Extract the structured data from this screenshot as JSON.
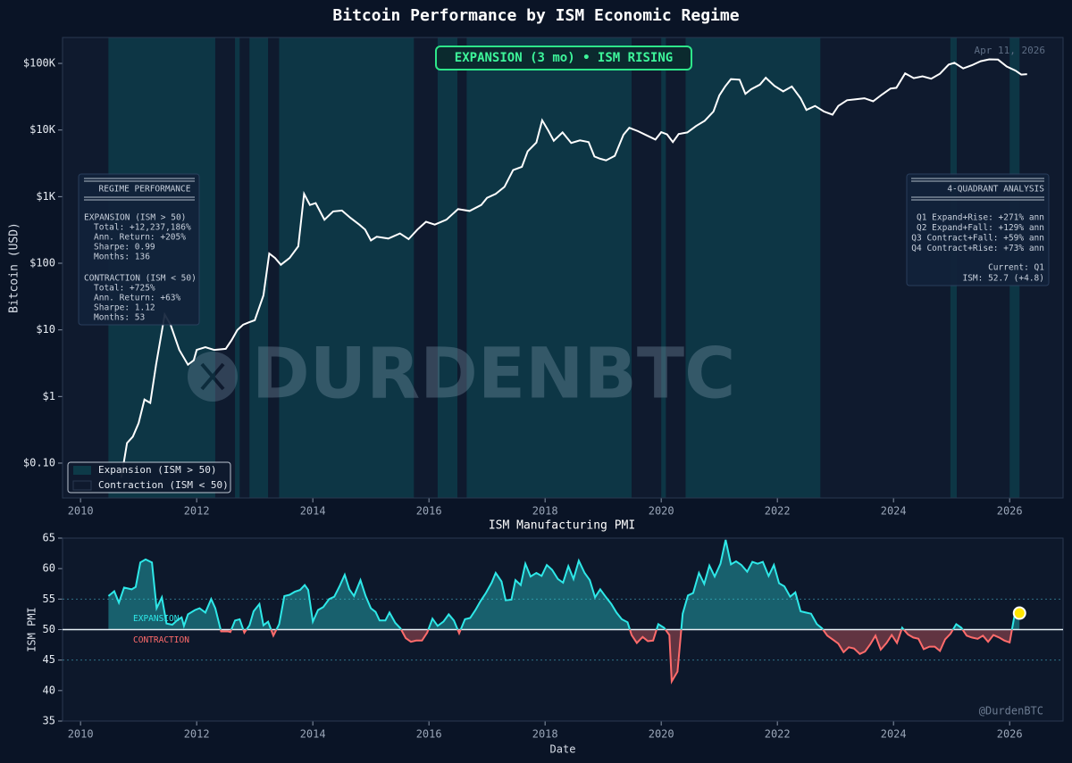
{
  "title": "Bitcoin Performance by ISM Economic Regime",
  "chart_data": [
    {
      "type": "line",
      "ylabel": "Bitcoin (USD)",
      "log_scale": true,
      "xlim": [
        2009.69,
        2026.92
      ],
      "xticks": [
        2010,
        2012,
        2014,
        2016,
        2018,
        2020,
        2022,
        2024,
        2026
      ],
      "ylim": [
        0.03,
        245000
      ],
      "yticks": [
        {
          "value": 0.1,
          "label": "$0.10"
        },
        {
          "value": 1,
          "label": "$1"
        },
        {
          "value": 10,
          "label": "$10"
        },
        {
          "value": 100,
          "label": "$100"
        },
        {
          "value": 1000,
          "label": "$1K"
        },
        {
          "value": 10000,
          "label": "$10K"
        },
        {
          "value": 100000,
          "label": "$100K"
        }
      ],
      "color": "#ffffff",
      "x": [
        2010.7,
        2010.8,
        2010.9,
        2011.0,
        2011.1,
        2011.2,
        2011.3,
        2011.45,
        2011.55,
        2011.7,
        2011.85,
        2011.95,
        2012.0,
        2012.15,
        2012.3,
        2012.5,
        2012.6,
        2012.7,
        2012.8,
        2012.9,
        2013.0,
        2013.15,
        2013.25,
        2013.35,
        2013.45,
        2013.6,
        2013.75,
        2013.85,
        2013.95,
        2014.05,
        2014.2,
        2014.35,
        2014.5,
        2014.65,
        2014.8,
        2014.9,
        2015.0,
        2015.1,
        2015.3,
        2015.5,
        2015.65,
        2015.8,
        2015.95,
        2016.1,
        2016.3,
        2016.5,
        2016.7,
        2016.9,
        2017.0,
        2017.15,
        2017.3,
        2017.45,
        2017.6,
        2017.7,
        2017.85,
        2017.95,
        2018.05,
        2018.15,
        2018.3,
        2018.45,
        2018.6,
        2018.75,
        2018.85,
        2018.95,
        2019.05,
        2019.2,
        2019.35,
        2019.45,
        2019.6,
        2019.75,
        2019.9,
        2020.0,
        2020.1,
        2020.2,
        2020.3,
        2020.45,
        2020.6,
        2020.75,
        2020.9,
        2021.0,
        2021.1,
        2021.2,
        2021.35,
        2021.45,
        2021.55,
        2021.7,
        2021.8,
        2021.95,
        2022.1,
        2022.25,
        2022.4,
        2022.5,
        2022.65,
        2022.8,
        2022.95,
        2023.05,
        2023.2,
        2023.35,
        2023.5,
        2023.65,
        2023.8,
        2023.95,
        2024.05,
        2024.2,
        2024.35,
        2024.5,
        2024.65,
        2024.8,
        2024.95,
        2025.05,
        2025.2,
        2025.35,
        2025.5,
        2025.65,
        2025.8,
        2025.95,
        2026.1,
        2026.2,
        2026.3
      ],
      "values": [
        0.06,
        0.2,
        0.25,
        0.4,
        0.9,
        0.8,
        3,
        17,
        12,
        5,
        3,
        3.5,
        5,
        5.5,
        5,
        5.2,
        7,
        10,
        12,
        13,
        14,
        33,
        140,
        120,
        95,
        120,
        180,
        1100,
        750,
        800,
        450,
        600,
        620,
        480,
        380,
        320,
        220,
        250,
        235,
        280,
        230,
        320,
        420,
        380,
        450,
        650,
        610,
        750,
        960,
        1100,
        1400,
        2500,
        2800,
        4800,
        6500,
        14000,
        10000,
        6900,
        9200,
        6400,
        7000,
        6600,
        4000,
        3700,
        3500,
        4100,
        8500,
        10800,
        9600,
        8300,
        7200,
        9300,
        8600,
        6600,
        8700,
        9200,
        11500,
        13800,
        19000,
        33000,
        45000,
        58000,
        57000,
        35000,
        41000,
        48000,
        61000,
        46000,
        38000,
        45000,
        30000,
        20000,
        23000,
        19000,
        17000,
        23000,
        28000,
        29000,
        30000,
        27000,
        34000,
        42000,
        43000,
        71000,
        60000,
        64000,
        59000,
        70000,
        96000,
        102000,
        84000,
        94000,
        108000,
        115000,
        114000,
        90000,
        78000,
        68000,
        69000
      ],
      "expansion_periods": [
        [
          2010.48,
          2012.32
        ],
        [
          2012.66,
          2012.74
        ],
        [
          2012.91,
          2013.23
        ],
        [
          2013.42,
          2015.74
        ],
        [
          2016.15,
          2016.49
        ],
        [
          2016.65,
          2019.49
        ],
        [
          2020.0,
          2020.08
        ],
        [
          2020.42,
          2022.74
        ],
        [
          2024.98,
          2025.09
        ],
        [
          2026.0,
          2026.17
        ]
      ],
      "legend": [
        {
          "name": "Expansion (ISM > 50)",
          "color": "#0d3a48"
        },
        {
          "name": "Contraction (ISM < 50)",
          "color": "#0f1a2e"
        }
      ],
      "legend_loc": "lower left",
      "banner": "EXPANSION (3 mo) • ISM RISING",
      "date_label": "Apr 11, 2026",
      "watermark": "DURDENBTC",
      "regime_performance": {
        "title": "REGIME PERFORMANCE",
        "groups": [
          {
            "heading": "EXPANSION (ISM > 50)",
            "items": [
              "Total: +12,237,186%",
              "Ann. Return: +205%",
              "Sharpe: 0.99",
              "Months: 136"
            ]
          },
          {
            "heading": "CONTRACTION (ISM < 50)",
            "items": [
              "Total: +725%",
              "Ann. Return: +63%",
              "Sharpe: 1.12",
              "Months: 53"
            ]
          }
        ]
      },
      "quadrant_analysis": {
        "title": "4-QUADRANT ANALYSIS",
        "items": [
          "Q1 Expand+Rise: +271% ann",
          "Q2 Expand+Fall: +129% ann",
          "Q3 Contract+Fall: +59% ann",
          "Q4 Contract+Rise: +73% ann"
        ],
        "current": [
          "Current: Q1",
          "ISM: 52.7 (+4.8)"
        ]
      }
    },
    {
      "type": "area",
      "title": "ISM Manufacturing PMI",
      "xlabel": "Date",
      "ylabel": "ISM PMI",
      "xlim": [
        2009.69,
        2026.92
      ],
      "xticks": [
        2010,
        2012,
        2014,
        2016,
        2018,
        2020,
        2022,
        2024,
        2026
      ],
      "ylim": [
        35,
        65
      ],
      "yticks": [
        35,
        40,
        45,
        50,
        55,
        60,
        65
      ],
      "threshold": 50,
      "reference_lines": [
        55,
        45
      ],
      "color": "#2ee8e8",
      "below_color": "#ff6b6b",
      "highlight_color": "#ffe600",
      "labels": {
        "above": "EXPANSION",
        "below": "CONTRACTION"
      },
      "credit": "@DurdenBTC",
      "x": [
        2010.48,
        2010.58,
        2010.66,
        2010.75,
        2010.88,
        2010.95,
        2011.03,
        2011.12,
        2011.23,
        2011.31,
        2011.4,
        2011.48,
        2011.58,
        2011.66,
        2011.74,
        2011.78,
        2011.85,
        2011.97,
        2012.05,
        2012.15,
        2012.25,
        2012.32,
        2012.42,
        2012.54,
        2012.58,
        2012.66,
        2012.74,
        2012.82,
        2012.91,
        2012.98,
        2013.08,
        2013.15,
        2013.23,
        2013.32,
        2013.42,
        2013.51,
        2013.6,
        2013.69,
        2013.78,
        2013.86,
        2013.92,
        2014.0,
        2014.09,
        2014.18,
        2014.28,
        2014.37,
        2014.46,
        2014.55,
        2014.63,
        2014.71,
        2014.82,
        2014.91,
        2015.0,
        2015.08,
        2015.15,
        2015.25,
        2015.32,
        2015.42,
        2015.51,
        2015.6,
        2015.69,
        2015.78,
        2015.88,
        2015.97,
        2016.06,
        2016.15,
        2016.25,
        2016.34,
        2016.43,
        2016.52,
        2016.62,
        2016.71,
        2016.8,
        2016.89,
        2016.98,
        2017.08,
        2017.15,
        2017.25,
        2017.32,
        2017.42,
        2017.49,
        2017.58,
        2017.66,
        2017.75,
        2017.85,
        2017.94,
        2018.03,
        2018.12,
        2018.22,
        2018.31,
        2018.4,
        2018.49,
        2018.58,
        2018.68,
        2018.77,
        2018.86,
        2018.95,
        2019.05,
        2019.14,
        2019.23,
        2019.32,
        2019.42,
        2019.49,
        2019.58,
        2019.68,
        2019.77,
        2019.86,
        2019.95,
        2020.05,
        2020.14,
        2020.18,
        2020.28,
        2020.37,
        2020.46,
        2020.55,
        2020.65,
        2020.74,
        2020.83,
        2020.92,
        2021.02,
        2021.11,
        2021.2,
        2021.29,
        2021.38,
        2021.48,
        2021.57,
        2021.66,
        2021.75,
        2021.85,
        2021.94,
        2022.03,
        2022.12,
        2022.22,
        2022.31,
        2022.4,
        2022.49,
        2022.58,
        2022.68,
        2022.77,
        2022.86,
        2022.95,
        2023.05,
        2023.14,
        2023.23,
        2023.32,
        2023.42,
        2023.51,
        2023.6,
        2023.69,
        2023.78,
        2023.88,
        2023.97,
        2024.06,
        2024.15,
        2024.25,
        2024.34,
        2024.43,
        2024.52,
        2024.62,
        2024.71,
        2024.8,
        2024.89,
        2024.98,
        2025.08,
        2025.17,
        2025.26,
        2025.35,
        2025.45,
        2025.54,
        2025.63,
        2025.72,
        2025.82,
        2025.91,
        2026.0,
        2026.09,
        2026.17
      ],
      "values": [
        55.5,
        56.3,
        54.4,
        56.9,
        56.6,
        57,
        61,
        61.5,
        61,
        53.5,
        55.3,
        51,
        50.8,
        51.5,
        52,
        50.6,
        52.5,
        53.2,
        53.5,
        52.8,
        55,
        53.5,
        49.7,
        49.7,
        49.6,
        51.5,
        51.7,
        49.5,
        50.7,
        53,
        54.2,
        50.7,
        51.3,
        49,
        50.9,
        55.5,
        55.7,
        56.2,
        56.5,
        57.3,
        56.5,
        51.3,
        53.2,
        53.7,
        55,
        55.4,
        57.1,
        59,
        56.6,
        55.5,
        58.1,
        55.5,
        53.5,
        52.9,
        51.5,
        51.5,
        52.8,
        51.1,
        50.2,
        48.6,
        48,
        48.2,
        48.2,
        49.5,
        51.8,
        50.6,
        51.3,
        52.5,
        51.5,
        49.4,
        51.7,
        51.9,
        53.2,
        54.7,
        56,
        57.7,
        59.3,
        57.9,
        54.8,
        54.9,
        58.1,
        57.3,
        60.8,
        58.7,
        59.3,
        58.8,
        60.6,
        59.8,
        58.3,
        57.7,
        60.4,
        58.3,
        61.3,
        59.3,
        58.1,
        55.3,
        56.6,
        55.3,
        54.2,
        52.8,
        51.7,
        51.2,
        49.1,
        47.8,
        48.8,
        48.1,
        48.2,
        50.9,
        50.3,
        49.1,
        41.5,
        43.1,
        52.6,
        55.6,
        56,
        59.3,
        57.5,
        60.5,
        58.7,
        60.8,
        64.7,
        60.7,
        61.2,
        60.6,
        59.5,
        61.1,
        60.8,
        61.1,
        58.8,
        60.6,
        57.6,
        57.1,
        55.4,
        56.1,
        53,
        52.8,
        52.6,
        50.9,
        50.2,
        49,
        48.4,
        47.7,
        46.3,
        47.1,
        46.9,
        46,
        46.4,
        47.6,
        49,
        46.7,
        47.8,
        49.1,
        47.8,
        50.3,
        49.2,
        48.7,
        48.5,
        46.8,
        47.2,
        47.2,
        46.5,
        48.4,
        49.3,
        50.9,
        50.3,
        49,
        48.7,
        48.5,
        49,
        48,
        49.1,
        48.7,
        48.2,
        47.9,
        52.6,
        52.7
      ]
    }
  ]
}
